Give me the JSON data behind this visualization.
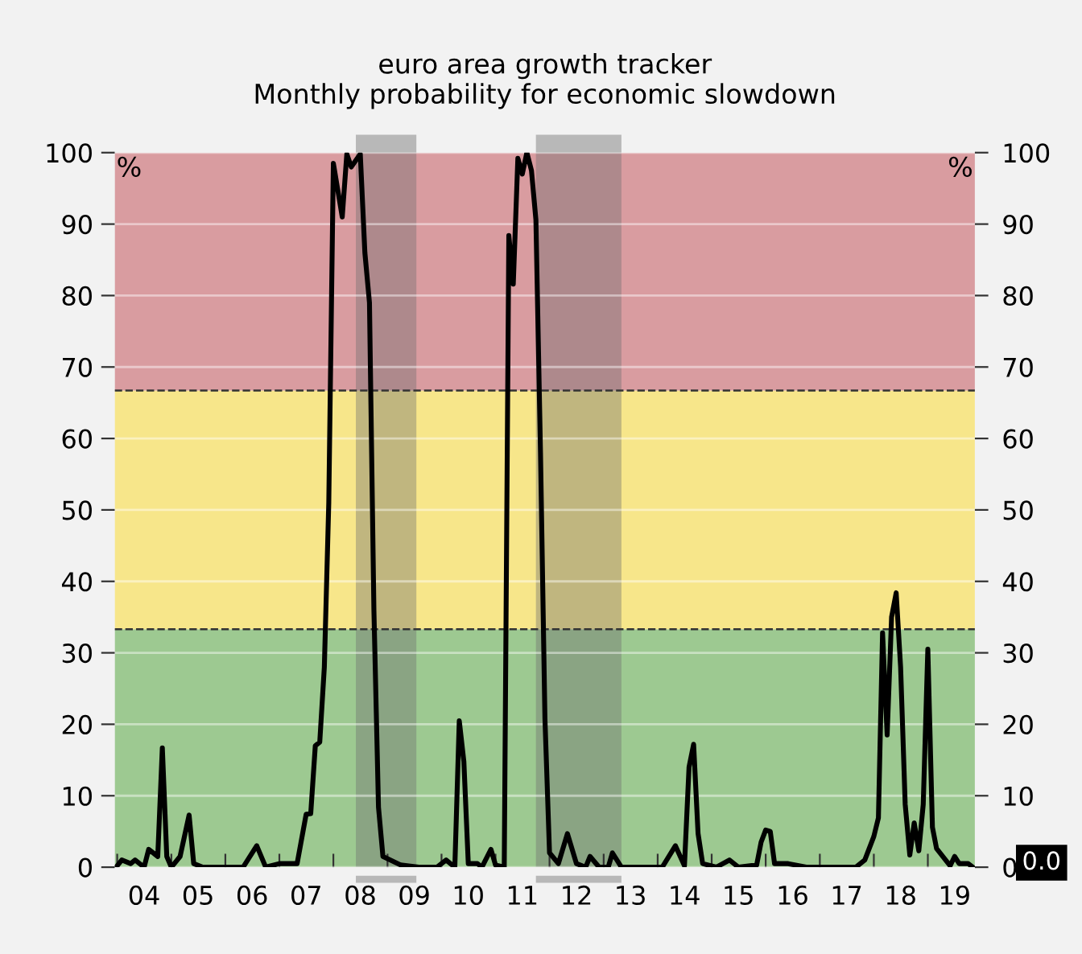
{
  "chart_data": {
    "type": "line",
    "title": "euro area growth tracker\nMonthly probability for economic slowdown",
    "ylabel": "%",
    "y2label": "%",
    "x": [
      "2004-01",
      "2004-02",
      "2004-04",
      "2004-05",
      "2004-07",
      "2004-08",
      "2004-10",
      "2004-11",
      "2004-12",
      "2005-01",
      "2005-03",
      "2005-05",
      "2005-06",
      "2005-08",
      "2006-05",
      "2006-08",
      "2006-10",
      "2007-01",
      "2007-05",
      "2007-07",
      "2007-08",
      "2007-09",
      "2007-10",
      "2007-11",
      "2007-12",
      "2008-01",
      "2008-03",
      "2008-04",
      "2008-05",
      "2008-07",
      "2008-08",
      "2008-09",
      "2008-10",
      "2008-11",
      "2008-12",
      "2009-04",
      "2009-08",
      "2009-12",
      "2010-02",
      "2010-04",
      "2010-05",
      "2010-06",
      "2010-07",
      "2010-09",
      "2010-10",
      "2010-12",
      "2011-01",
      "2011-03",
      "2011-04",
      "2011-05",
      "2011-06",
      "2011-07",
      "2011-08",
      "2011-09",
      "2011-10",
      "2011-11",
      "2011-12",
      "2012-01",
      "2012-03",
      "2012-05",
      "2012-07",
      "2012-09",
      "2012-10",
      "2012-12",
      "2013-02",
      "2013-03",
      "2013-05",
      "2014-02",
      "2014-05",
      "2014-07",
      "2014-08",
      "2014-09",
      "2014-10",
      "2014-11",
      "2015-02",
      "2015-05",
      "2015-07",
      "2015-11",
      "2015-12",
      "2016-01",
      "2016-02",
      "2016-03",
      "2016-06",
      "2016-10",
      "2017-09",
      "2017-11",
      "2018-01",
      "2018-02",
      "2018-03",
      "2018-04",
      "2018-05",
      "2018-06",
      "2018-07",
      "2018-08",
      "2018-09",
      "2018-10",
      "2018-11",
      "2018-12",
      "2019-01",
      "2019-02",
      "2019-03",
      "2019-05",
      "2019-06",
      "2019-07",
      "2019-08",
      "2019-10",
      "2019-11"
    ],
    "series": [
      {
        "color": "#000000",
        "values": [
          0.2,
          1,
          0.5,
          1,
          0,
          2.5,
          1.5,
          16.7,
          1.5,
          0,
          1.5,
          7.3,
          0.5,
          0,
          0,
          3,
          0,
          0.5,
          0.5,
          7.4,
          7.5,
          17,
          17.5,
          28,
          51,
          98.5,
          91,
          99.8,
          98,
          99.8,
          86,
          79,
          36,
          8.4,
          1.5,
          0.3,
          0,
          0,
          1,
          0,
          20.5,
          14.8,
          0.5,
          0.5,
          0,
          2.5,
          0.3,
          0,
          88.4,
          81.6,
          99.2,
          97,
          100,
          97.5,
          90.6,
          58,
          20.8,
          2,
          0.5,
          4.7,
          0.5,
          0,
          1.5,
          0,
          0,
          2,
          0,
          0,
          3,
          0.2,
          14,
          17.2,
          4.7,
          0.5,
          0,
          1,
          0,
          0.3,
          3.5,
          5.2,
          5,
          0.5,
          0.5,
          0,
          0,
          1,
          4.3,
          6.9,
          32.8,
          18.5,
          35,
          38.4,
          28,
          8.8,
          1.7,
          6.2,
          2.3,
          8.8,
          30.5,
          5.6,
          2.6,
          1,
          0.2,
          1.5,
          0.5,
          0.5,
          0
        ]
      }
    ],
    "xlim": [
      "2003-12-15",
      "2019-11-15"
    ],
    "xticks": [
      {
        "value": "2004-01",
        "label": null
      },
      {
        "value": "2004-07",
        "label": "04"
      },
      {
        "value": "2005-01",
        "label": null
      },
      {
        "value": "2005-07",
        "label": "05"
      },
      {
        "value": "2006-01",
        "label": null
      },
      {
        "value": "2006-07",
        "label": "06"
      },
      {
        "value": "2007-01",
        "label": null
      },
      {
        "value": "2007-07",
        "label": "07"
      },
      {
        "value": "2008-01",
        "label": null
      },
      {
        "value": "2008-07",
        "label": "08"
      },
      {
        "value": "2009-01",
        "label": null
      },
      {
        "value": "2009-07",
        "label": "09"
      },
      {
        "value": "2010-01",
        "label": null
      },
      {
        "value": "2010-07",
        "label": "10"
      },
      {
        "value": "2011-01",
        "label": null
      },
      {
        "value": "2011-07",
        "label": "11"
      },
      {
        "value": "2012-01",
        "label": null
      },
      {
        "value": "2012-07",
        "label": "12"
      },
      {
        "value": "2013-01",
        "label": null
      },
      {
        "value": "2013-07",
        "label": "13"
      },
      {
        "value": "2014-01",
        "label": null
      },
      {
        "value": "2014-07",
        "label": "14"
      },
      {
        "value": "2015-01",
        "label": null
      },
      {
        "value": "2015-07",
        "label": "15"
      },
      {
        "value": "2016-01",
        "label": null
      },
      {
        "value": "2016-07",
        "label": "16"
      },
      {
        "value": "2017-01",
        "label": null
      },
      {
        "value": "2017-07",
        "label": "17"
      },
      {
        "value": "2018-01",
        "label": null
      },
      {
        "value": "2018-07",
        "label": "18"
      },
      {
        "value": "2019-01",
        "label": null
      },
      {
        "value": "2019-07",
        "label": "19"
      }
    ],
    "ylim": [
      0,
      100
    ],
    "yticks": [
      0,
      10,
      20,
      30,
      40,
      50,
      60,
      70,
      80,
      90,
      100
    ],
    "y2lim": [
      0,
      100
    ],
    "y2ticks": [
      0,
      10,
      20,
      30,
      40,
      50,
      60,
      70,
      80,
      90,
      100
    ],
    "bands": [
      {
        "axis": "y",
        "from": 0,
        "to": 33.3,
        "color": "#9dc991"
      },
      {
        "axis": "y",
        "from": 33.3,
        "to": 66.7,
        "color": "#f7e68a"
      },
      {
        "axis": "y",
        "from": 66.7,
        "to": 100,
        "color": "#d99ca0"
      },
      {
        "axis": "x",
        "from": "2008-06",
        "to": "2009-07-15",
        "color": "#6e6e6e"
      },
      {
        "axis": "x",
        "from": "2011-10",
        "to": "2013-05",
        "color": "#6e6e6e"
      }
    ],
    "ref_lines": [
      {
        "axis": "y",
        "value": 33.3,
        "line_style": "dashed",
        "color": "#333333"
      },
      {
        "axis": "y",
        "value": 66.7,
        "line_style": "dashed",
        "color": "#333333"
      }
    ],
    "annotations": [
      {
        "text": "0.0",
        "x": "2019-11",
        "y": 0
      }
    ],
    "grid": "y",
    "legend": false,
    "marker": "none",
    "line_style": "solid"
  }
}
